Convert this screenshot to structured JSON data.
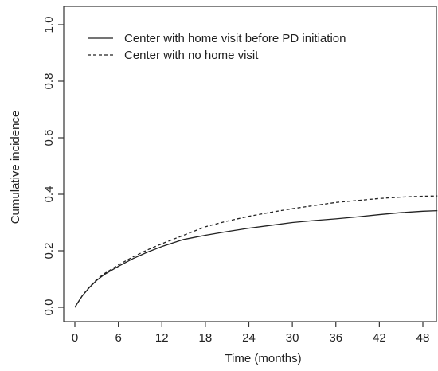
{
  "chart_data": {
    "type": "line",
    "title": "",
    "xlabel": "Time (months)",
    "ylabel": "Cumulative incidence",
    "xlim": [
      0,
      50
    ],
    "ylim": [
      0,
      1
    ],
    "x_ticks": [
      0,
      6,
      12,
      18,
      24,
      30,
      36,
      42,
      48
    ],
    "x_tick_labels": [
      "0",
      "6",
      "12",
      "18",
      "24",
      "30",
      "36",
      "42",
      "48"
    ],
    "y_ticks": [
      0,
      0.2,
      0.4,
      0.6,
      0.8,
      1.0
    ],
    "y_tick_labels": [
      "0.0",
      "0.2",
      "0.4",
      "0.6",
      "0.8",
      "1.0"
    ],
    "grid": false,
    "legend_position": "top-left",
    "series": [
      {
        "name": "Center with home visit before PD initiation",
        "line_style": "solid",
        "color": "#222222",
        "x": [
          0,
          1,
          2,
          3,
          4,
          6,
          8,
          10,
          12,
          15,
          18,
          21,
          24,
          27,
          30,
          33,
          36,
          39,
          42,
          45,
          48,
          50
        ],
        "y": [
          0,
          0.04,
          0.07,
          0.095,
          0.115,
          0.145,
          0.172,
          0.195,
          0.215,
          0.24,
          0.255,
          0.268,
          0.28,
          0.29,
          0.3,
          0.307,
          0.313,
          0.32,
          0.328,
          0.335,
          0.34,
          0.342
        ]
      },
      {
        "name": "Center with no home visit",
        "line_style": "dashed",
        "color": "#222222",
        "x": [
          0,
          1,
          2,
          3,
          4,
          6,
          8,
          10,
          12,
          15,
          18,
          21,
          24,
          27,
          30,
          33,
          36,
          39,
          42,
          45,
          48,
          50
        ],
        "y": [
          0,
          0.04,
          0.072,
          0.098,
          0.118,
          0.15,
          0.178,
          0.203,
          0.225,
          0.255,
          0.285,
          0.305,
          0.322,
          0.336,
          0.349,
          0.36,
          0.371,
          0.378,
          0.385,
          0.39,
          0.393,
          0.394
        ]
      }
    ]
  }
}
